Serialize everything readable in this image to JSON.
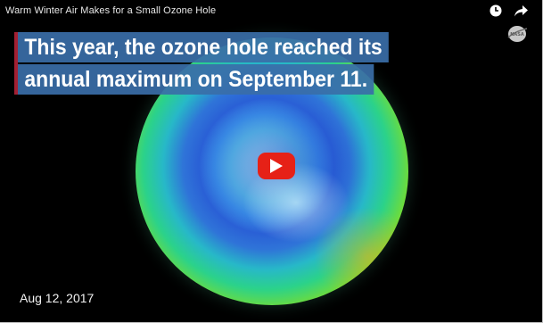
{
  "video": {
    "title": "Warm Winter Air Makes for a Small Ozone Hole",
    "caption_line1": "This year, the ozone hole reached its",
    "caption_line2": "annual maximum on September 11.",
    "date": "Aug 12, 2017"
  },
  "icons": {
    "watch_later": "clock-icon",
    "share": "share-arrow-icon",
    "channel_logo": "nasa-logo-icon",
    "play": "play-icon"
  },
  "colors": {
    "play_button": "#e62117",
    "caption_background": "#3a6ea8",
    "caption_accent": "#a32033"
  }
}
